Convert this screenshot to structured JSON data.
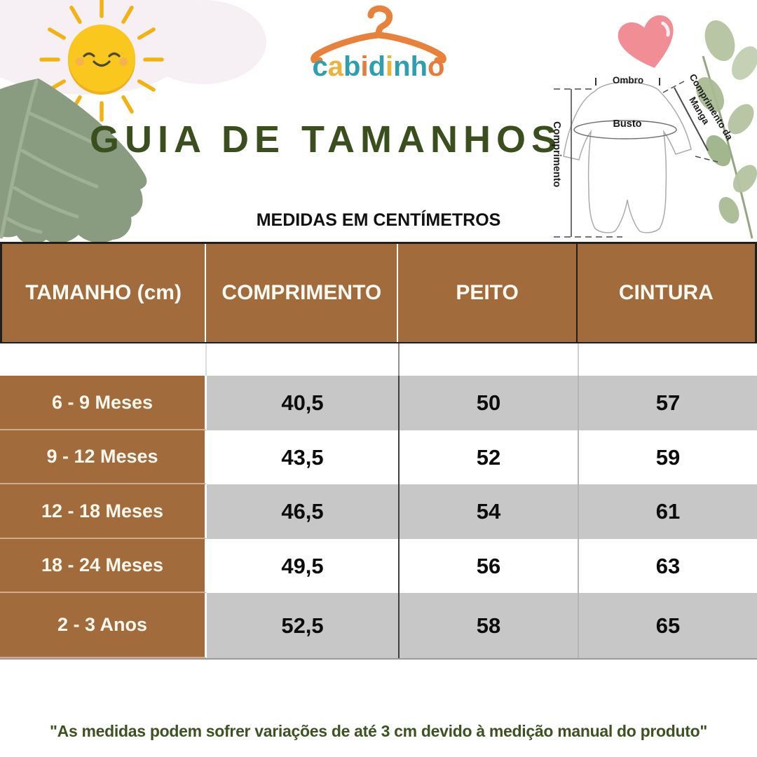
{
  "brand": {
    "name": "cabidinho",
    "name_letters": [
      {
        "ch": "c",
        "color": "#2f9faf"
      },
      {
        "ch": "a",
        "color": "#edb13c"
      },
      {
        "ch": "b",
        "color": "#2f9faf"
      },
      {
        "ch": "i",
        "color": "#e87a3b"
      },
      {
        "ch": "d",
        "color": "#2f9faf"
      },
      {
        "ch": "i",
        "color": "#edb13c"
      },
      {
        "ch": "n",
        "color": "#2f9faf"
      },
      {
        "ch": "h",
        "color": "#2f9faf"
      },
      {
        "ch": "o",
        "color": "#e87a3b"
      }
    ]
  },
  "title": "GUIA DE TAMANHOS",
  "subtitle": "MEDIDAS EM CENTÍMETROS",
  "diagram": {
    "shoulder_label": "Ombro",
    "bust_label": "Busto",
    "length_label": "Comprimento",
    "sleeve_label_line1": "Comprimento da",
    "sleeve_label_line2": "Manga"
  },
  "table": {
    "columns": [
      "TAMANHO (cm)",
      "COMPRIMENTO",
      "PEITO",
      "CINTURA"
    ],
    "rows": [
      {
        "size": "6 - 9 Meses",
        "values": [
          "40,5",
          "50",
          "57"
        ]
      },
      {
        "size": "9 - 12 Meses",
        "values": [
          "43,5",
          "52",
          "59"
        ]
      },
      {
        "size": "12 - 18 Meses",
        "values": [
          "46,5",
          "54",
          "61"
        ]
      },
      {
        "size": "18 - 24 Meses",
        "values": [
          "49,5",
          "56",
          "63"
        ]
      },
      {
        "size": "2 - 3 Anos",
        "values": [
          "52,5",
          "58",
          "65"
        ]
      }
    ]
  },
  "footer_note": "\"As medidas podem sofrer variações de até 3 cm devido à medição manual do produto\"",
  "colors": {
    "table_brown": "#a26b3b",
    "row_gray": "#c7c7c7",
    "title_green": "#3a4f1d",
    "footer_green": "#3c5220",
    "brand_orange": "#e8823b",
    "brand_teal": "#2f9faf",
    "brand_amber": "#edb13c",
    "heart_pink": "#f08d95",
    "sun_yellow": "#f9c71e",
    "leaf_sage": "#8a9c80"
  }
}
